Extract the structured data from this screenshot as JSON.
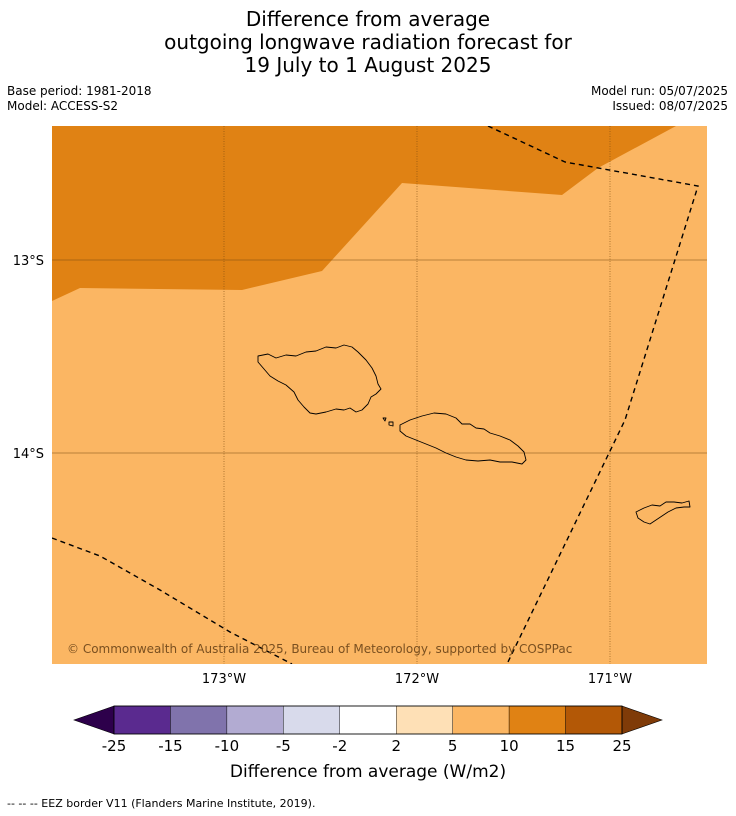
{
  "title": {
    "line1": "Difference from average",
    "line2": "outgoing longwave radiation forecast for",
    "line3": "19 July to 1 August 2025"
  },
  "meta": {
    "base_period": "Base period: 1981-2018",
    "model": "Model: ACCESS-S2",
    "model_run": "Model run: 05/07/2025",
    "issued": "Issued: 08/07/2025"
  },
  "map": {
    "lon_labels": [
      "173°W",
      "172°W",
      "171°W"
    ],
    "lat_labels": [
      "13°S",
      "14°S"
    ],
    "copyright": "© Commonwealth of Australia 2025, Bureau of Meteorology, supported by COSPPac",
    "colors": {
      "anomaly_5_10": "#fbb663",
      "anomaly_10_15": "#e08214",
      "gridline": "#7a4a10",
      "eez_border": "#000000",
      "coastline": "#000000"
    }
  },
  "colorbar": {
    "label": "Difference from average (W/m2)",
    "ticks": [
      "-25",
      "-15",
      "-10",
      "-5",
      "-2",
      "2",
      "5",
      "10",
      "15",
      "25"
    ],
    "colors": [
      "#5a2a8f",
      "#8073ac",
      "#b2abd2",
      "#d8daeb",
      "#ffffff",
      "#fee0b6",
      "#fbb663",
      "#e08214",
      "#b35806"
    ],
    "under_color": "#2d004b",
    "over_color": "#7f3b08"
  },
  "footer": {
    "eez_note": "--  --  -- EEZ border V11 (Flanders Marine Institute, 2019)."
  }
}
